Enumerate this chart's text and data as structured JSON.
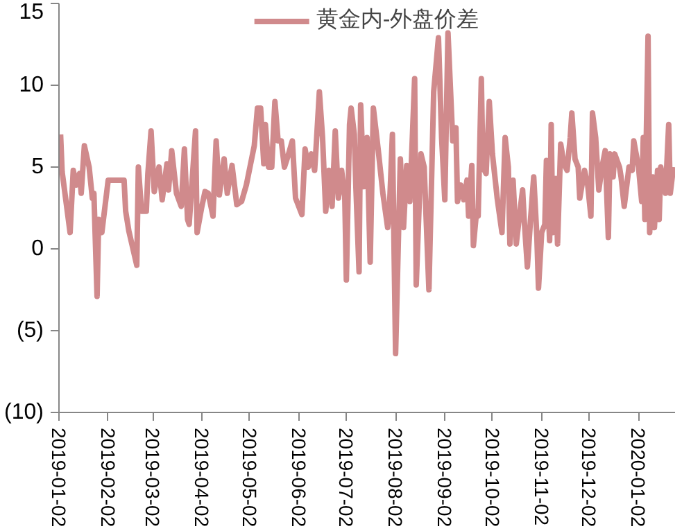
{
  "chart_data": {
    "type": "line",
    "x": [
      "2019-01-03",
      "2019-01-04",
      "2019-01-09",
      "2019-01-11",
      "2019-01-13",
      "2019-01-15",
      "2019-01-16",
      "2019-01-18",
      "2019-01-21",
      "2019-01-23",
      "2019-01-24",
      "2019-01-26",
      "2019-01-27",
      "2019-01-29",
      "2019-01-30",
      "2019-02-02",
      "2019-02-12",
      "2019-02-13",
      "2019-02-15",
      "2019-02-20",
      "2019-02-21",
      "2019-02-23",
      "2019-02-26",
      "2019-02-27",
      "2019-03-01",
      "2019-03-03",
      "2019-03-06",
      "2019-03-08",
      "2019-03-11",
      "2019-03-12",
      "2019-03-14",
      "2019-03-17",
      "2019-03-20",
      "2019-03-22",
      "2019-03-24",
      "2019-03-25",
      "2019-03-29",
      "2019-03-30",
      "2019-04-02",
      "2019-04-04",
      "2019-04-06",
      "2019-04-09",
      "2019-04-11",
      "2019-04-13",
      "2019-04-16",
      "2019-04-18",
      "2019-04-21",
      "2019-04-24",
      "2019-04-27",
      "2019-04-30",
      "2019-05-05",
      "2019-05-07",
      "2019-05-09",
      "2019-05-11",
      "2019-05-12",
      "2019-05-14",
      "2019-05-16",
      "2019-05-18",
      "2019-05-20",
      "2019-05-22",
      "2019-05-24",
      "2019-05-26",
      "2019-05-29",
      "2019-05-31",
      "2019-06-04",
      "2019-06-06",
      "2019-06-08",
      "2019-06-10",
      "2019-06-12",
      "2019-06-13",
      "2019-06-15",
      "2019-06-17",
      "2019-06-19",
      "2019-06-21",
      "2019-06-23",
      "2019-06-25",
      "2019-06-27",
      "2019-06-29",
      "2019-07-01",
      "2019-07-02",
      "2019-07-04",
      "2019-07-05",
      "2019-07-07",
      "2019-07-08",
      "2019-07-10",
      "2019-07-11",
      "2019-07-13",
      "2019-07-15",
      "2019-07-17",
      "2019-07-19",
      "2019-07-22",
      "2019-07-25",
      "2019-07-28",
      "2019-07-29",
      "2019-07-31",
      "2019-08-02",
      "2019-08-05",
      "2019-08-07",
      "2019-08-09",
      "2019-08-11",
      "2019-08-14",
      "2019-08-15",
      "2019-08-18",
      "2019-08-20",
      "2019-08-23",
      "2019-08-26",
      "2019-08-29",
      "2019-08-31",
      "2019-09-02",
      "2019-09-04",
      "2019-09-07",
      "2019-09-09",
      "2019-09-10",
      "2019-09-12",
      "2019-09-14",
      "2019-09-16",
      "2019-09-17",
      "2019-09-19",
      "2019-09-20",
      "2019-09-22",
      "2019-09-23",
      "2019-09-25",
      "2019-09-26",
      "2019-09-28",
      "2019-09-30",
      "2019-10-02",
      "2019-10-05",
      "2019-10-08",
      "2019-10-10",
      "2019-10-12",
      "2019-10-13",
      "2019-10-15",
      "2019-10-17",
      "2019-10-19",
      "2019-10-21",
      "2019-10-22",
      "2019-10-24",
      "2019-10-26",
      "2019-10-28",
      "2019-10-30",
      "2019-10-31",
      "2019-11-02",
      "2019-11-04",
      "2019-11-05",
      "2019-11-07",
      "2019-11-08",
      "2019-11-09",
      "2019-11-11",
      "2019-11-12",
      "2019-11-14",
      "2019-11-16",
      "2019-11-18",
      "2019-11-20",
      "2019-11-21",
      "2019-11-23",
      "2019-11-25",
      "2019-11-26",
      "2019-11-29",
      "2019-12-01",
      "2019-12-03",
      "2019-12-04",
      "2019-12-06",
      "2019-12-08",
      "2019-12-10",
      "2019-12-12",
      "2019-12-14",
      "2019-12-15",
      "2019-12-17",
      "2019-12-18",
      "2019-12-21",
      "2019-12-22",
      "2019-12-24",
      "2019-12-27",
      "2019-12-29",
      "2019-12-30",
      "2020-01-02",
      "2020-01-04",
      "2020-01-05",
      "2020-01-06",
      "2020-01-08",
      "2020-01-09",
      "2020-01-11",
      "2020-01-12",
      "2020-01-14",
      "2020-01-15",
      "2020-01-16",
      "2020-01-19",
      "2020-01-21",
      "2020-01-22",
      "2020-01-24"
    ],
    "series": [
      {
        "name": "黄金内-外盘价差",
        "color": "#d08a8c",
        "values": [
          7.0,
          4.7,
          1.0,
          4.8,
          3.9,
          4.6,
          3.4,
          6.3,
          5.0,
          3.1,
          3.4,
          -2.9,
          1.8,
          1.0,
          1.8,
          4.2,
          4.2,
          2.3,
          1.1,
          -1.0,
          5.0,
          2.3,
          2.3,
          4.6,
          7.2,
          3.5,
          5.0,
          3.0,
          5.2,
          3.6,
          6.0,
          3.4,
          2.6,
          6.1,
          1.8,
          1.5,
          7.2,
          1.0,
          2.6,
          3.5,
          3.4,
          2.0,
          6.6,
          3.3,
          5.5,
          3.4,
          5.1,
          2.7,
          2.9,
          3.9,
          6.3,
          8.6,
          8.6,
          5.2,
          7.6,
          5.0,
          5.0,
          9.0,
          6.6,
          6.6,
          5.0,
          5.6,
          6.6,
          3.1,
          2.1,
          6.1,
          5.0,
          5.8,
          4.8,
          6.3,
          9.6,
          6.8,
          2.3,
          4.8,
          2.6,
          7.2,
          3.1,
          4.8,
          3.2,
          -1.9,
          7.6,
          8.6,
          7.0,
          3.8,
          -1.4,
          8.8,
          3.8,
          6.8,
          -0.8,
          8.6,
          6.1,
          3.4,
          1.3,
          2.1,
          7.0,
          -6.4,
          5.5,
          1.3,
          5.1,
          2.9,
          10.4,
          -2.2,
          5.8,
          5.0,
          -2.5,
          9.6,
          12.9,
          6.8,
          3.0,
          13.2,
          6.6,
          7.4,
          2.9,
          3.9,
          3.0,
          4.2,
          2.0,
          5.1,
          0.2,
          2.3,
          2.0,
          10.4,
          5.0,
          4.6,
          9.0,
          5.8,
          3.1,
          1.0,
          6.8,
          5.0,
          0.3,
          4.2,
          0.3,
          2.0,
          3.6,
          1.8,
          -1.1,
          1.8,
          4.4,
          0.7,
          -2.4,
          1.0,
          1.5,
          5.4,
          0.5,
          7.6,
          1.0,
          4.3,
          0.3,
          6.4,
          5.2,
          4.8,
          6.8,
          8.3,
          5.5,
          5.0,
          3.1,
          4.8,
          3.9,
          2.0,
          8.3,
          6.8,
          3.6,
          5.0,
          6.0,
          0.7,
          5.8,
          4.4,
          5.8,
          5.0,
          4.4,
          2.6,
          5.0,
          4.8,
          6.6,
          5.0,
          2.9,
          6.8,
          1.8,
          13.0,
          1.0,
          4.4,
          1.3,
          4.8,
          1.8,
          5.0,
          3.4,
          7.6,
          3.4,
          5.0
        ]
      }
    ],
    "xlim": [
      "2019-01-02",
      "2020-01-25"
    ],
    "xticks": [
      "2019-01-02",
      "2019-02-02",
      "2019-03-02",
      "2019-04-02",
      "2019-05-02",
      "2019-06-02",
      "2019-07-02",
      "2019-08-02",
      "2019-09-02",
      "2019-10-02",
      "2019-11-02",
      "2019-12-02",
      "2020-01-02"
    ],
    "ylim": [
      -10,
      15
    ],
    "yticks": [
      15,
      10,
      5,
      0,
      {
        "value": -5,
        "label": "(5)"
      },
      {
        "value": -10,
        "label": "(10)"
      }
    ],
    "grid": false,
    "legend": "top",
    "marker": "none",
    "line_style": "solid"
  }
}
